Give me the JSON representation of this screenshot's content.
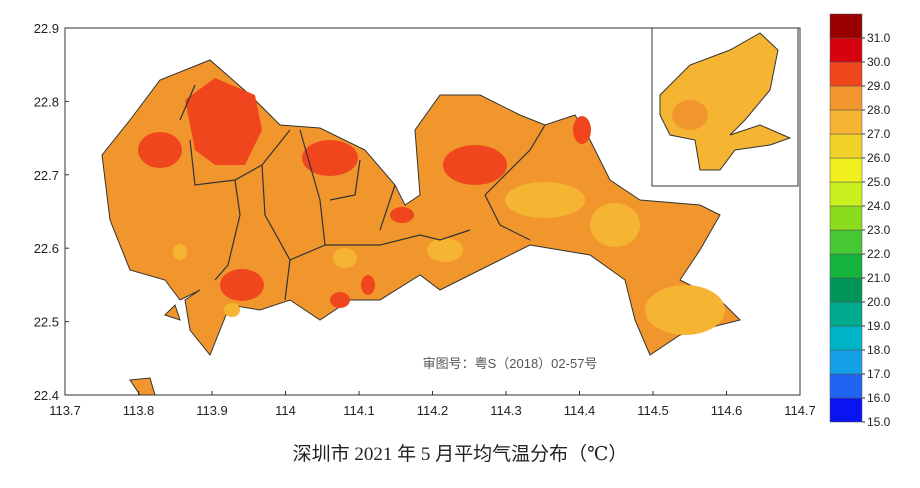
{
  "map": {
    "caption": "深圳市 2021 年 5 月平均气温分布（℃）",
    "approval_number": "审图号：粤S（2018）02-57号",
    "lon_ticks": [
      113.7,
      113.8,
      113.9,
      114,
      114.1,
      114.2,
      114.3,
      114.4,
      114.5,
      114.6,
      114.7
    ],
    "lat_ticks": [
      22.4,
      22.5,
      22.6,
      22.7,
      22.8,
      22.9
    ],
    "lonlim": [
      113.7,
      114.7
    ],
    "latlim": [
      22.4,
      22.9
    ],
    "colorbar": {
      "ticks": [
        {
          "value": 15,
          "label": "15.0"
        },
        {
          "value": 16,
          "label": "16.0"
        },
        {
          "value": 17,
          "label": "17.0"
        },
        {
          "value": 18,
          "label": "18.0"
        },
        {
          "value": 19,
          "label": "19.0"
        },
        {
          "value": 20,
          "label": "20.0"
        },
        {
          "value": 21,
          "label": "21.0"
        },
        {
          "value": 22,
          "label": "22.0"
        },
        {
          "value": 23,
          "label": "23.0"
        },
        {
          "value": 24,
          "label": "24.0"
        },
        {
          "value": 25,
          "label": "25.0"
        },
        {
          "value": 26,
          "label": "26.0"
        },
        {
          "value": 27,
          "label": "27.0"
        },
        {
          "value": 28,
          "label": "28.0"
        },
        {
          "value": 29,
          "label": "29.0"
        },
        {
          "value": 30,
          "label": "30.0"
        },
        {
          "value": 31,
          "label": "31.0"
        }
      ],
      "colors": [
        "#0a14f0",
        "#1e64f0",
        "#14a0e6",
        "#00b4c8",
        "#00aa8c",
        "#00965a",
        "#14b43c",
        "#46c832",
        "#8cdc1e",
        "#c8f01e",
        "#f0f01e",
        "#f0d228",
        "#f5b432",
        "#f0962d",
        "#f0461e",
        "#d7000f",
        "#9b0000"
      ]
    }
  }
}
